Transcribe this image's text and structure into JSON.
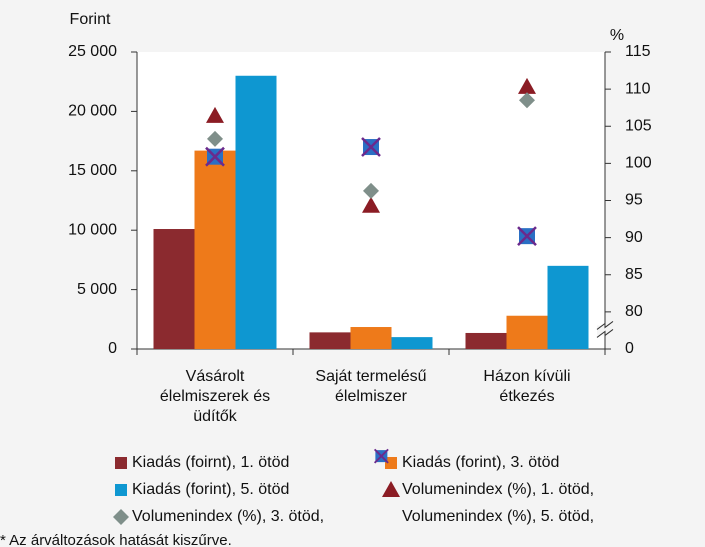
{
  "chart_data": {
    "type": "bar",
    "ylabel": "Forint",
    "y2label": "%",
    "categories": [
      [
        "Vásárolt",
        "élelmiszerek és",
        "üdítők"
      ],
      [
        "Saját termelésű",
        "élelmiszer"
      ],
      [
        "Házon kívüli",
        "étkezés"
      ]
    ],
    "series": [
      {
        "name": "Kiadás (foirnt), 1. ötöd",
        "color": "#8b2a2f",
        "values": [
          10100,
          1400,
          1350
        ]
      },
      {
        "name": "Kiadás (forint), 3. ötöd",
        "color": "#ee7a1a",
        "values": [
          16700,
          1850,
          2800
        ]
      },
      {
        "name": "Kiadás (forint), 5. ötöd",
        "color": "#0e97d1",
        "values": [
          23000,
          1000,
          7000
        ]
      },
      {
        "name": "Volumenindex (%), 1. ötöd,",
        "color": "#8b1c24",
        "axis": "y2",
        "marker": "triangle",
        "values": [
          106.4,
          94.3,
          110.3
        ]
      },
      {
        "name": "Volumenindex (%), 3. ötöd,",
        "color": "#7f8f8a",
        "axis": "y2",
        "marker": "diamond",
        "values": [
          103.3,
          96.3,
          108.5
        ]
      },
      {
        "name": "Volumenindex (%), 5. ötöd,",
        "color": "#2a6fc4",
        "axis": "y2",
        "marker": "x-square",
        "values": [
          100.9,
          102.2,
          90.2
        ]
      }
    ],
    "ylim": [
      0,
      25000
    ],
    "yticks": [
      0,
      {
        "value": 5000,
        "label": "5 000"
      },
      {
        "value": 10000,
        "label": "10 000"
      },
      {
        "value": 15000,
        "label": "15 000"
      },
      {
        "value": 20000,
        "label": "20 000"
      },
      {
        "value": 25000,
        "label": "25 000"
      }
    ],
    "y2lim": [
      0,
      115
    ],
    "y2break": [
      0,
      80
    ],
    "y2ticks": [
      0,
      80,
      85,
      90,
      95,
      100,
      105,
      110,
      115
    ],
    "grid": false,
    "footnote": "* Az árváltozások hatását kiszűrve."
  }
}
